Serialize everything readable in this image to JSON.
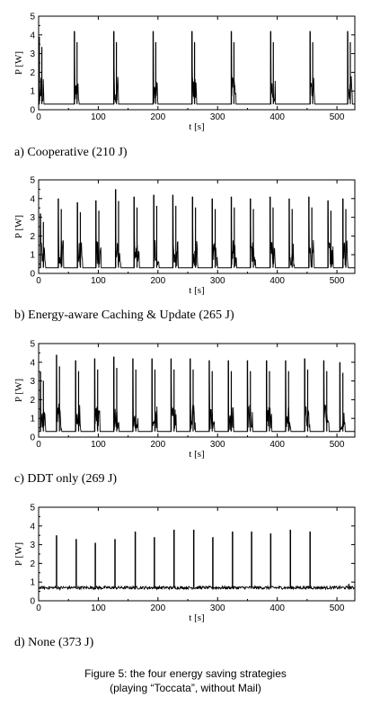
{
  "figure_caption": {
    "line1": "Figure 5: the four energy saving strategies",
    "line2": "(playing “Toccata”, without Mail)"
  },
  "chart_data": [
    {
      "type": "line",
      "caption": "a) Cooperative (210 J)",
      "xlabel": "t [s]",
      "ylabel": "P [W]",
      "xlim": [
        0,
        530
      ],
      "ylim": [
        0,
        5
      ],
      "xticks": [
        0,
        100,
        200,
        300,
        400,
        500
      ],
      "yticks": [
        0,
        1,
        2,
        3,
        4,
        5
      ],
      "baseline_w": 0.3,
      "burst_level_w": 1.8,
      "burst_width_s": 8,
      "bursts": [
        {
          "t": 1,
          "peak": 3.9
        },
        {
          "t": 60,
          "peak": 4.2
        },
        {
          "t": 126,
          "peak": 4.2
        },
        {
          "t": 192,
          "peak": 4.2
        },
        {
          "t": 257,
          "peak": 4.2
        },
        {
          "t": 323,
          "peak": 4.2
        },
        {
          "t": 389,
          "peak": 4.2
        },
        {
          "t": 455,
          "peak": 4.2
        },
        {
          "t": 518,
          "peak": 4.2
        }
      ]
    },
    {
      "type": "line",
      "caption": "b) Energy-aware Caching & Update (265 J)",
      "xlabel": "t [s]",
      "ylabel": "P [W]",
      "xlim": [
        0,
        530
      ],
      "ylim": [
        0,
        5
      ],
      "xticks": [
        0,
        100,
        200,
        300,
        400,
        500
      ],
      "yticks": [
        0,
        1,
        2,
        3,
        4,
        5
      ],
      "baseline_w": 0.3,
      "burst_level_w": 1.8,
      "burst_width_s": 9,
      "bursts": [
        {
          "t": 3,
          "peak": 3.2
        },
        {
          "t": 33,
          "peak": 4.0
        },
        {
          "t": 65,
          "peak": 3.8
        },
        {
          "t": 96,
          "peak": 3.9
        },
        {
          "t": 129,
          "peak": 4.5
        },
        {
          "t": 160,
          "peak": 4.1
        },
        {
          "t": 193,
          "peak": 4.2
        },
        {
          "t": 225,
          "peak": 4.2
        },
        {
          "t": 258,
          "peak": 4.1
        },
        {
          "t": 291,
          "peak": 4.0
        },
        {
          "t": 323,
          "peak": 4.1
        },
        {
          "t": 355,
          "peak": 4.0
        },
        {
          "t": 388,
          "peak": 4.1
        },
        {
          "t": 420,
          "peak": 4.0
        },
        {
          "t": 453,
          "peak": 4.1
        },
        {
          "t": 485,
          "peak": 3.9
        },
        {
          "t": 510,
          "peak": 4.0
        }
      ]
    },
    {
      "type": "line",
      "caption": "c) DDT only (269 J)",
      "xlabel": "t [s]",
      "ylabel": "P [W]",
      "xlim": [
        0,
        530
      ],
      "ylim": [
        0,
        5
      ],
      "xticks": [
        0,
        100,
        200,
        300,
        400,
        500
      ],
      "yticks": [
        0,
        1,
        2,
        3,
        4,
        5
      ],
      "baseline_w": 0.3,
      "burst_level_w": 1.8,
      "burst_width_s": 9,
      "bursts": [
        {
          "t": 3,
          "peak": 3.5
        },
        {
          "t": 30,
          "peak": 4.4
        },
        {
          "t": 62,
          "peak": 4.1
        },
        {
          "t": 94,
          "peak": 4.2
        },
        {
          "t": 126,
          "peak": 4.3
        },
        {
          "t": 158,
          "peak": 4.2
        },
        {
          "t": 190,
          "peak": 4.2
        },
        {
          "t": 222,
          "peak": 4.2
        },
        {
          "t": 254,
          "peak": 4.2
        },
        {
          "t": 286,
          "peak": 4.1
        },
        {
          "t": 318,
          "peak": 4.1
        },
        {
          "t": 350,
          "peak": 4.1
        },
        {
          "t": 382,
          "peak": 4.1
        },
        {
          "t": 414,
          "peak": 4.1
        },
        {
          "t": 446,
          "peak": 4.2
        },
        {
          "t": 478,
          "peak": 4.1
        },
        {
          "t": 505,
          "peak": 4.0
        }
      ]
    },
    {
      "type": "line",
      "caption": "d) None (373 J)",
      "xlabel": "t [s]",
      "ylabel": "P [W]",
      "xlim": [
        0,
        530
      ],
      "ylim": [
        0,
        5
      ],
      "xticks": [
        0,
        100,
        200,
        300,
        400,
        500
      ],
      "yticks": [
        0,
        1,
        2,
        3,
        4,
        5
      ],
      "baseline_w": 0.7,
      "noise_w": 0.08,
      "spikes": [
        {
          "t": 30,
          "peak": 3.5
        },
        {
          "t": 63,
          "peak": 3.3
        },
        {
          "t": 95,
          "peak": 3.1
        },
        {
          "t": 128,
          "peak": 3.3
        },
        {
          "t": 162,
          "peak": 3.7
        },
        {
          "t": 194,
          "peak": 3.4
        },
        {
          "t": 227,
          "peak": 3.8
        },
        {
          "t": 260,
          "peak": 3.8
        },
        {
          "t": 292,
          "peak": 3.4
        },
        {
          "t": 325,
          "peak": 3.7
        },
        {
          "t": 357,
          "peak": 3.7
        },
        {
          "t": 389,
          "peak": 3.6
        },
        {
          "t": 422,
          "peak": 3.8
        },
        {
          "t": 455,
          "peak": 3.7
        },
        {
          "t": 520,
          "peak": 0.9
        }
      ]
    }
  ]
}
